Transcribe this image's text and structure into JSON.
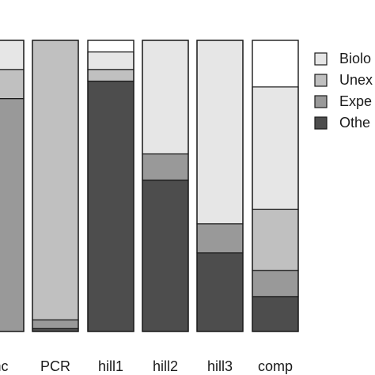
{
  "chart_data": {
    "type": "bar",
    "stacked": true,
    "orientation": "vertical",
    "categories": [
      "nc",
      "PCR",
      "hill1",
      "hill2",
      "hill3",
      "comp"
    ],
    "tick_labels": [
      "nc",
      "PCR",
      "hill1",
      "hill2",
      "hill3",
      "comp"
    ],
    "series": [
      {
        "name": "Biolo",
        "color": "#e6e6e6",
        "values": [
          0.1,
          0.0,
          0.06,
          0.39,
          0.63,
          0.42
        ]
      },
      {
        "name": "Unex",
        "color": "#c0c0c0",
        "values": [
          0.1,
          0.96,
          0.04,
          0.0,
          0.0,
          0.21
        ]
      },
      {
        "name": "Expe",
        "color": "#999999",
        "values": [
          0.8,
          0.03,
          0.0,
          0.09,
          0.1,
          0.09
        ]
      },
      {
        "name": "Othe",
        "color": "#4d4d4d",
        "values": [
          0.0,
          0.01,
          0.86,
          0.52,
          0.27,
          0.12
        ]
      }
    ],
    "stack_order": "bottom-to-top: Othe, Expe, Unex, Biolo",
    "ylim": [
      0,
      1
    ],
    "legend": {
      "placement": "right",
      "entries": [
        "Biolo",
        "Unex",
        "Expe",
        "Othe"
      ]
    },
    "grid": false,
    "xlabel": "",
    "ylabel": "",
    "title": ""
  }
}
